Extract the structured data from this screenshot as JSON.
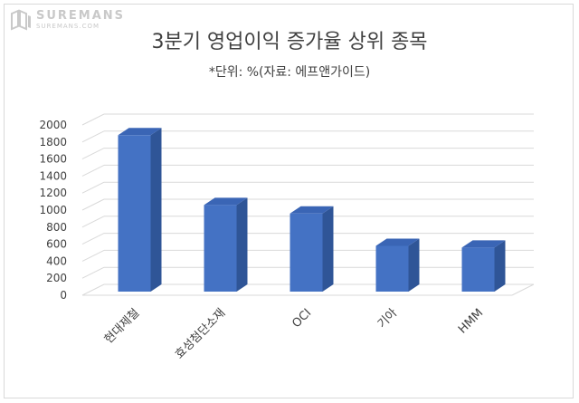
{
  "logo": {
    "main": "SUREMANS",
    "sub": "SUREMANS.COM"
  },
  "chart_data": {
    "type": "bar",
    "title": "3분기 영업이익 증가율 상위 종목",
    "subtitle": "*단위: %(자료: 에프앤가이드)",
    "categories": [
      "현대제철",
      "효성첨단소재",
      "OCI",
      "기아",
      "HMM"
    ],
    "values": [
      1880,
      1060,
      960,
      580,
      560
    ],
    "ylim": [
      0,
      2000
    ],
    "yticks": [
      0,
      200,
      400,
      600,
      800,
      1000,
      1200,
      1400,
      1600,
      1800,
      2000
    ],
    "grid": true,
    "legend": "none",
    "bar_color": "#4472c4",
    "bar_side_color": "#2f5597",
    "bar_top_color": "#3a65b5"
  }
}
